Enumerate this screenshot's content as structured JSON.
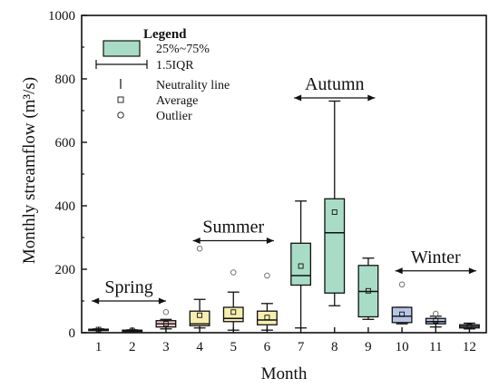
{
  "chart_data": {
    "type": "box",
    "title": "",
    "xlabel": "Month",
    "ylabel": "Monthly streamflow (m³/s)",
    "ylim": [
      0,
      1000
    ],
    "yticks": [
      0,
      200,
      400,
      600,
      800,
      1000
    ],
    "categories": [
      "1",
      "2",
      "3",
      "4",
      "5",
      "6",
      "7",
      "8",
      "9",
      "10",
      "11",
      "12"
    ],
    "colors": {
      "spring": "#f3c8c8",
      "summer": "#f7efb0",
      "autumn": "#a8dcc6",
      "winter": "#b7c4e6",
      "axis": "#111111"
    },
    "boxes": [
      {
        "month": "1",
        "season": "spring",
        "whisker_low": 8,
        "q1": 9,
        "median": 10,
        "q3": 11,
        "whisker_high": 12,
        "mean": 10,
        "outliers": []
      },
      {
        "month": "2",
        "season": "spring",
        "whisker_low": 5,
        "q1": 6,
        "median": 7,
        "q3": 8,
        "whisker_high": 9,
        "mean": 7,
        "outliers": []
      },
      {
        "month": "3",
        "season": "spring",
        "whisker_low": 12,
        "q1": 18,
        "median": 28,
        "q3": 38,
        "whisker_high": 42,
        "mean": 28,
        "outliers": [
          65
        ]
      },
      {
        "month": "4",
        "season": "summer",
        "whisker_low": 15,
        "q1": 22,
        "median": 28,
        "q3": 68,
        "whisker_high": 105,
        "mean": 55,
        "outliers": [
          265
        ]
      },
      {
        "month": "5",
        "season": "summer",
        "whisker_low": 8,
        "q1": 35,
        "median": 45,
        "q3": 80,
        "whisker_high": 128,
        "mean": 65,
        "outliers": [
          190
        ]
      },
      {
        "month": "6",
        "season": "summer",
        "whisker_low": 8,
        "q1": 25,
        "median": 40,
        "q3": 68,
        "whisker_high": 92,
        "mean": 48,
        "outliers": [
          180
        ]
      },
      {
        "month": "7",
        "season": "autumn",
        "whisker_low": 15,
        "q1": 150,
        "median": 180,
        "q3": 282,
        "whisker_high": 415,
        "mean": 210,
        "outliers": []
      },
      {
        "month": "8",
        "season": "autumn",
        "whisker_low": 85,
        "q1": 125,
        "median": 315,
        "q3": 422,
        "whisker_high": 730,
        "mean": 380,
        "outliers": []
      },
      {
        "month": "9",
        "season": "autumn",
        "whisker_low": 42,
        "q1": 50,
        "median": 130,
        "q3": 212,
        "whisker_high": 235,
        "mean": 132,
        "outliers": []
      },
      {
        "month": "10",
        "season": "winter",
        "whisker_low": 28,
        "q1": 32,
        "median": 52,
        "q3": 80,
        "whisker_high": 80,
        "mean": 58,
        "outliers": [
          152
        ]
      },
      {
        "month": "11",
        "season": "winter",
        "whisker_low": 18,
        "q1": 28,
        "median": 35,
        "q3": 45,
        "whisker_high": 52,
        "mean": 38,
        "outliers": [
          60
        ]
      },
      {
        "month": "12",
        "season": "winter",
        "whisker_low": 12,
        "q1": 15,
        "median": 20,
        "q3": 25,
        "whisker_high": 30,
        "mean": 20,
        "outliers": []
      }
    ],
    "season_spans": [
      {
        "label": "Spring",
        "from_month": 0.8,
        "to_month": 3.0,
        "value": 100
      },
      {
        "label": "Summer",
        "from_month": 3.8,
        "to_month": 6.2,
        "value": 290
      },
      {
        "label": "Autumn",
        "from_month": 6.8,
        "to_month": 9.2,
        "value": 740
      },
      {
        "label": "Winter",
        "from_month": 9.8,
        "to_month": 12.2,
        "value": 195
      }
    ],
    "legend": {
      "title": "Legend",
      "items": [
        {
          "symbol": "box",
          "label": "25%~75%"
        },
        {
          "symbol": "whisker",
          "label": "1.5IQR"
        },
        {
          "symbol": "vline",
          "label": "Neutrality line"
        },
        {
          "symbol": "square",
          "label": "Average"
        },
        {
          "symbol": "circle",
          "label": "Outlier"
        }
      ]
    }
  }
}
